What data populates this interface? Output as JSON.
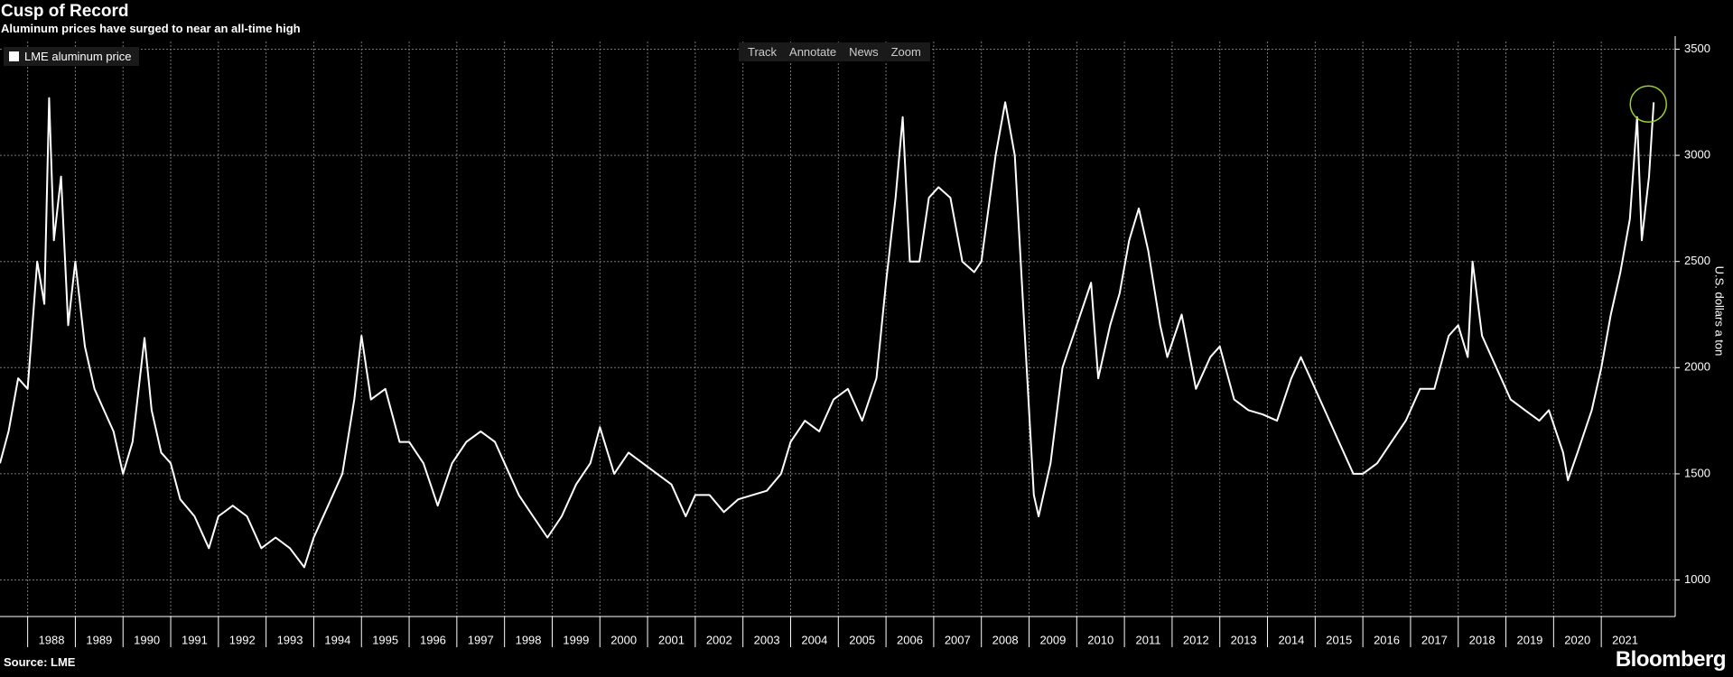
{
  "chart_data": {
    "type": "line",
    "title": "Cusp of Record",
    "subtitle": "Aluminum prices have surged to near an all-time high",
    "y_label": "U.S. dollars a ton",
    "source": "Source: LME",
    "x": [
      1987.42,
      1987.6,
      1987.8,
      1988.0,
      1988.2,
      1988.35,
      1988.45,
      1988.55,
      1988.7,
      1988.85,
      1989.0,
      1989.2,
      1989.4,
      1989.6,
      1989.8,
      1990.0,
      1990.2,
      1990.45,
      1990.6,
      1990.8,
      1991.0,
      1991.2,
      1991.5,
      1991.8,
      1992.0,
      1992.3,
      1992.6,
      1992.9,
      1993.2,
      1993.5,
      1993.8,
      1994.0,
      1994.3,
      1994.6,
      1994.85,
      1995.0,
      1995.2,
      1995.5,
      1995.8,
      1996.0,
      1996.3,
      1996.6,
      1996.9,
      1997.2,
      1997.5,
      1997.8,
      1998.0,
      1998.3,
      1998.6,
      1998.9,
      1999.2,
      1999.5,
      1999.8,
      2000.0,
      2000.3,
      2000.6,
      2000.9,
      2001.2,
      2001.5,
      2001.8,
      2002.0,
      2002.3,
      2002.6,
      2002.9,
      2003.2,
      2003.5,
      2003.8,
      2004.0,
      2004.3,
      2004.6,
      2004.9,
      2005.2,
      2005.5,
      2005.8,
      2006.0,
      2006.2,
      2006.35,
      2006.5,
      2006.7,
      2006.9,
      2007.1,
      2007.35,
      2007.6,
      2007.85,
      2008.0,
      2008.3,
      2008.5,
      2008.7,
      2008.9,
      2009.1,
      2009.2,
      2009.45,
      2009.7,
      2010.0,
      2010.3,
      2010.45,
      2010.7,
      2010.9,
      2011.1,
      2011.3,
      2011.5,
      2011.75,
      2011.9,
      2012.2,
      2012.5,
      2012.8,
      2013.0,
      2013.3,
      2013.6,
      2013.9,
      2014.2,
      2014.5,
      2014.7,
      2014.9,
      2015.2,
      2015.5,
      2015.8,
      2016.0,
      2016.3,
      2016.6,
      2016.9,
      2017.2,
      2017.5,
      2017.8,
      2018.0,
      2018.2,
      2018.3,
      2018.5,
      2018.7,
      2018.9,
      2019.1,
      2019.4,
      2019.7,
      2019.9,
      2020.2,
      2020.3,
      2020.5,
      2020.8,
      2021.0,
      2021.2,
      2021.4,
      2021.6,
      2021.75,
      2021.85,
      2022.0,
      2022.1
    ],
    "series": [
      {
        "name": "LME aluminum price",
        "color": "#ffffff",
        "values": [
          1550,
          1700,
          1950,
          1900,
          2500,
          2300,
          3270,
          2600,
          2900,
          2200,
          2500,
          2100,
          1900,
          1800,
          1700,
          1500,
          1650,
          2140,
          1800,
          1600,
          1550,
          1380,
          1300,
          1150,
          1300,
          1350,
          1300,
          1150,
          1200,
          1150,
          1060,
          1200,
          1350,
          1500,
          1850,
          2150,
          1850,
          1900,
          1650,
          1650,
          1550,
          1350,
          1550,
          1650,
          1700,
          1650,
          1550,
          1400,
          1300,
          1200,
          1300,
          1450,
          1550,
          1720,
          1500,
          1600,
          1550,
          1500,
          1450,
          1300,
          1400,
          1400,
          1320,
          1380,
          1400,
          1420,
          1500,
          1650,
          1750,
          1700,
          1850,
          1900,
          1750,
          1950,
          2400,
          2800,
          3180,
          2500,
          2500,
          2800,
          2850,
          2800,
          2500,
          2450,
          2500,
          3000,
          3250,
          3000,
          2200,
          1400,
          1300,
          1550,
          2000,
          2200,
          2400,
          1950,
          2200,
          2350,
          2600,
          2750,
          2550,
          2200,
          2050,
          2250,
          1900,
          2050,
          2100,
          1850,
          1800,
          1780,
          1750,
          1950,
          2050,
          1950,
          1800,
          1650,
          1500,
          1500,
          1550,
          1650,
          1750,
          1900,
          1900,
          2150,
          2200,
          2050,
          2500,
          2150,
          2050,
          1950,
          1850,
          1800,
          1750,
          1800,
          1600,
          1470,
          1600,
          1800,
          2000,
          2250,
          2450,
          2700,
          3180,
          2600,
          2900,
          3250
        ]
      }
    ],
    "xlim": [
      1987.42,
      2022.55
    ],
    "xticks": [
      1988,
      1989,
      1990,
      1991,
      1992,
      1993,
      1994,
      1995,
      1996,
      1997,
      1998,
      1999,
      2000,
      2001,
      2002,
      2003,
      2004,
      2005,
      2006,
      2007,
      2008,
      2009,
      2010,
      2011,
      2012,
      2013,
      2014,
      2015,
      2016,
      2017,
      2018,
      2019,
      2020,
      2021
    ],
    "ylim": [
      828,
      3536
    ],
    "yticks": [
      1000,
      1500,
      2000,
      2500,
      3000,
      3500
    ],
    "grid": true
  },
  "toolbar": [
    "Track",
    "Annotate",
    "News",
    "Zoom"
  ],
  "brand": "Bloomberg"
}
